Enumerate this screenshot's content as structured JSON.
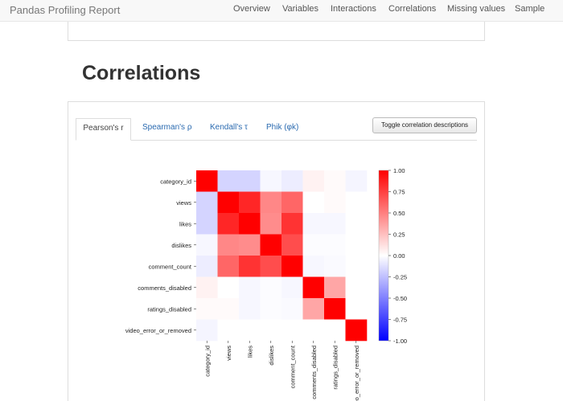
{
  "navbar": {
    "brand": "Pandas Profiling Report",
    "items": [
      "Overview",
      "Variables",
      "Interactions",
      "Correlations",
      "Missing values",
      "Sample"
    ]
  },
  "section": {
    "title": "Correlations"
  },
  "tabs": [
    "Pearson's r",
    "Spearman's ρ",
    "Kendall's τ",
    "Phik (φk)"
  ],
  "toggle_label": "Toggle correlation descriptions",
  "colors": {
    "positive": "#ff0000",
    "negative": "#0000ff",
    "link": "#2a6ab0"
  },
  "chart_data": {
    "type": "heatmap",
    "variables": [
      "category_id",
      "views",
      "likes",
      "dislikes",
      "comment_count",
      "comments_disabled",
      "ratings_disabled",
      "video_error_or_removed"
    ],
    "x_tick_labels": [
      "category_id",
      "views",
      "likes",
      "dislikes",
      "comment_count",
      "comments_disabled",
      "ratings_disabled",
      "video_error_or_removed"
    ],
    "matrix": [
      [
        1.0,
        -0.17,
        -0.17,
        -0.03,
        -0.07,
        0.05,
        0.02,
        -0.04
      ],
      [
        -0.17,
        1.0,
        0.85,
        0.47,
        0.6,
        0.0,
        0.02,
        0.0
      ],
      [
        -0.17,
        0.85,
        1.0,
        0.45,
        0.8,
        -0.03,
        -0.03,
        0.0
      ],
      [
        -0.03,
        0.47,
        0.45,
        1.0,
        0.7,
        -0.01,
        -0.01,
        0.0
      ],
      [
        -0.07,
        0.6,
        0.8,
        0.7,
        1.0,
        -0.03,
        -0.02,
        0.0
      ],
      [
        0.05,
        0.0,
        -0.03,
        -0.01,
        -0.03,
        1.0,
        0.35,
        0.0
      ],
      [
        0.02,
        0.02,
        -0.03,
        -0.01,
        -0.02,
        0.35,
        1.0,
        0.0
      ],
      [
        -0.04,
        0.0,
        0.0,
        0.0,
        0.0,
        0.0,
        0.0,
        1.0
      ]
    ],
    "colorbar": {
      "ticks": [
        "1.00",
        "0.75",
        "0.50",
        "0.25",
        "0.00",
        "-0.25",
        "-0.50",
        "-0.75",
        "-1.00"
      ],
      "range": [
        -1,
        1
      ]
    }
  }
}
